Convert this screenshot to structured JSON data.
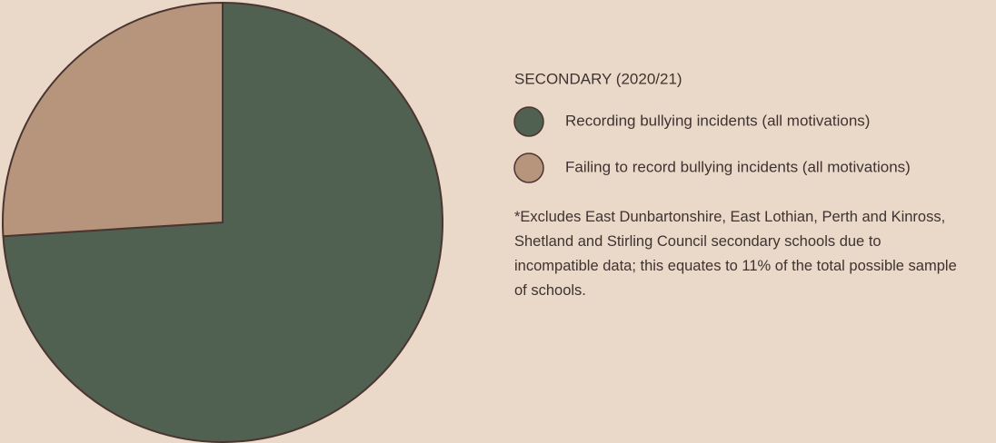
{
  "chart_data": {
    "type": "pie",
    "legend_title": "SECONDARY (2020/21)",
    "categories": [
      "Recording bullying incidents (all motivations)",
      "Failing to record bullying incidents (all motivations)"
    ],
    "values": [
      74,
      26
    ],
    "colors": [
      "#516151",
      "#b6957c"
    ],
    "note": "*Excludes East Dunbartonshire, East Lothian, Perth and Kinross, Shetland and Stirling Council secondary schools due to incompatible data; this equates to 11% of the total possible sample of schools."
  }
}
